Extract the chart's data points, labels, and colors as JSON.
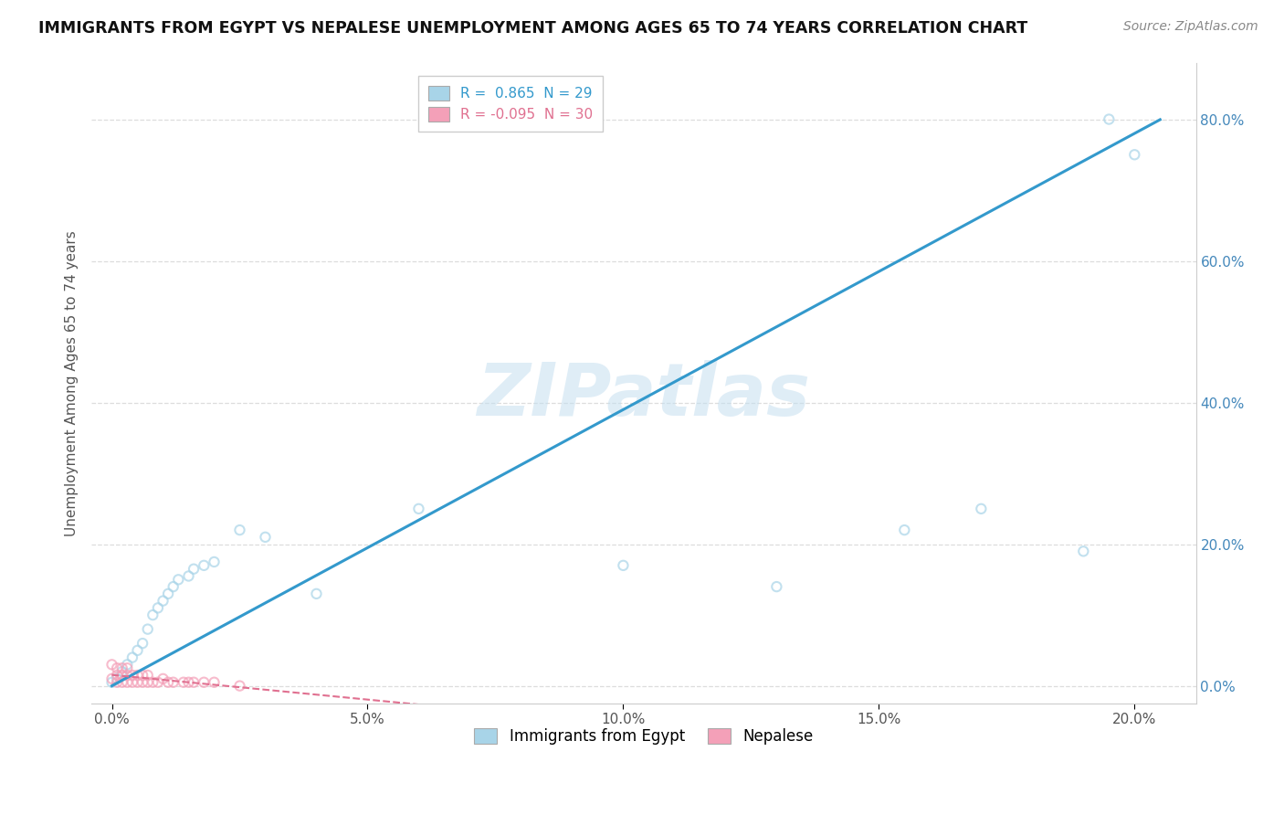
{
  "title": "IMMIGRANTS FROM EGYPT VS NEPALESE UNEMPLOYMENT AMONG AGES 65 TO 74 YEARS CORRELATION CHART",
  "source_text": "Source: ZipAtlas.com",
  "ylabel": "Unemployment Among Ages 65 to 74 years",
  "xlim": [
    -0.004,
    0.212
  ],
  "ylim": [
    -0.025,
    0.88
  ],
  "watermark": "ZIPatlas",
  "egypt_color": "#a8d4e8",
  "nepal_color": "#f4a0b8",
  "egypt_line_color": "#3399cc",
  "nepal_line_color": "#e07090",
  "grid_color": "#dddddd",
  "background_color": "#ffffff",
  "scatter_size": 55,
  "scatter_alpha": 0.7,
  "egypt_R": 0.865,
  "egypt_N": 29,
  "nepal_R": -0.095,
  "nepal_N": 30,
  "egypt_x": [
    0.0,
    0.001,
    0.002,
    0.003,
    0.004,
    0.005,
    0.006,
    0.007,
    0.008,
    0.009,
    0.01,
    0.011,
    0.012,
    0.013,
    0.015,
    0.016,
    0.018,
    0.02,
    0.025,
    0.03,
    0.04,
    0.06,
    0.1,
    0.13,
    0.155,
    0.17,
    0.19,
    0.195,
    0.2
  ],
  "egypt_y": [
    0.005,
    0.01,
    0.02,
    0.03,
    0.04,
    0.05,
    0.06,
    0.08,
    0.1,
    0.11,
    0.12,
    0.13,
    0.14,
    0.15,
    0.155,
    0.165,
    0.17,
    0.175,
    0.22,
    0.21,
    0.13,
    0.25,
    0.17,
    0.14,
    0.22,
    0.25,
    0.19,
    0.8,
    0.75
  ],
  "nepal_x": [
    0.0,
    0.0,
    0.001,
    0.001,
    0.001,
    0.002,
    0.002,
    0.002,
    0.003,
    0.003,
    0.003,
    0.004,
    0.004,
    0.005,
    0.005,
    0.006,
    0.006,
    0.007,
    0.007,
    0.008,
    0.009,
    0.01,
    0.011,
    0.012,
    0.014,
    0.015,
    0.016,
    0.018,
    0.02,
    0.025
  ],
  "nepal_y": [
    0.01,
    0.03,
    0.005,
    0.015,
    0.025,
    0.005,
    0.015,
    0.025,
    0.005,
    0.015,
    0.025,
    0.005,
    0.015,
    0.005,
    0.015,
    0.005,
    0.015,
    0.005,
    0.015,
    0.005,
    0.005,
    0.01,
    0.005,
    0.005,
    0.005,
    0.005,
    0.005,
    0.005,
    0.005,
    0.0
  ]
}
